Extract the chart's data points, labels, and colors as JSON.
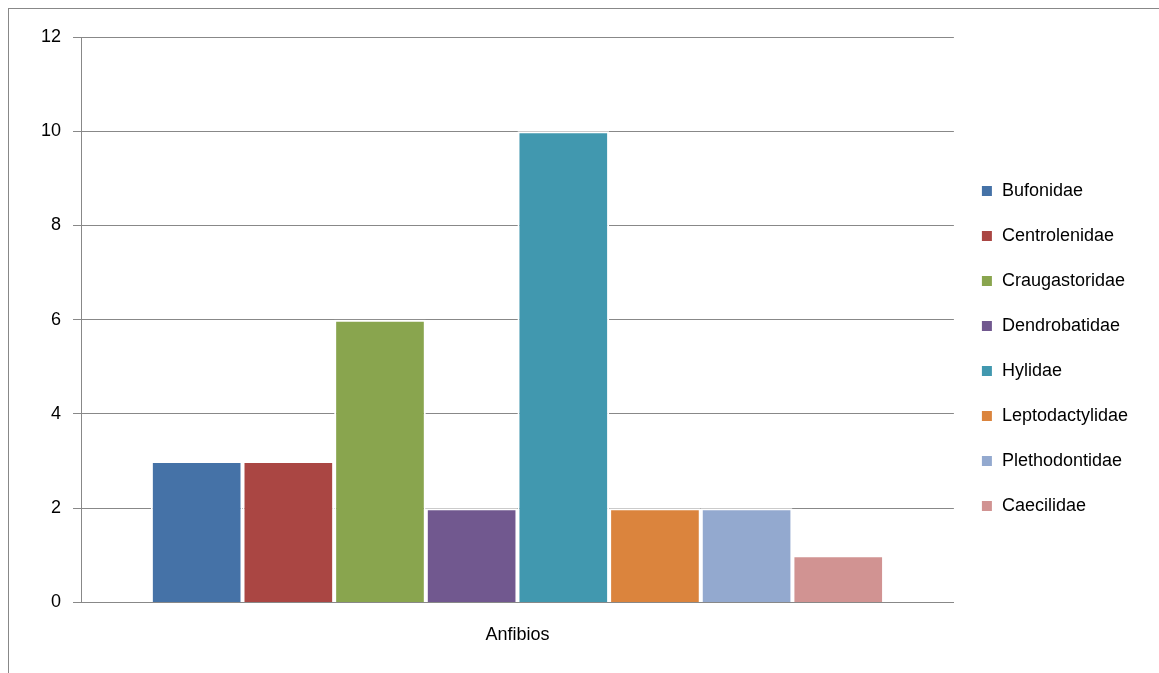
{
  "chart_data": {
    "type": "bar",
    "categories": [
      "Anfibios"
    ],
    "series": [
      {
        "name": "Bufonidae",
        "color": "#4572a7",
        "values": [
          3
        ]
      },
      {
        "name": "Centrolenidae",
        "color": "#aa4643",
        "values": [
          3
        ]
      },
      {
        "name": "Craugastoridae",
        "color": "#89a54e",
        "values": [
          6
        ]
      },
      {
        "name": "Dendrobatidae",
        "color": "#71588f",
        "values": [
          2
        ]
      },
      {
        "name": "Hylidae",
        "color": "#4198af",
        "values": [
          10
        ]
      },
      {
        "name": "Leptodactylidae",
        "color": "#db843d",
        "values": [
          2
        ]
      },
      {
        "name": "Plethodontidae",
        "color": "#93a9cf",
        "values": [
          2
        ]
      },
      {
        "name": "Caecilidae",
        "color": "#d19392",
        "values": [
          1
        ]
      }
    ],
    "ylim": [
      0,
      12
    ],
    "yticks": [
      0,
      2,
      4,
      6,
      8,
      10,
      12
    ],
    "grid": "y",
    "legend": "right"
  }
}
